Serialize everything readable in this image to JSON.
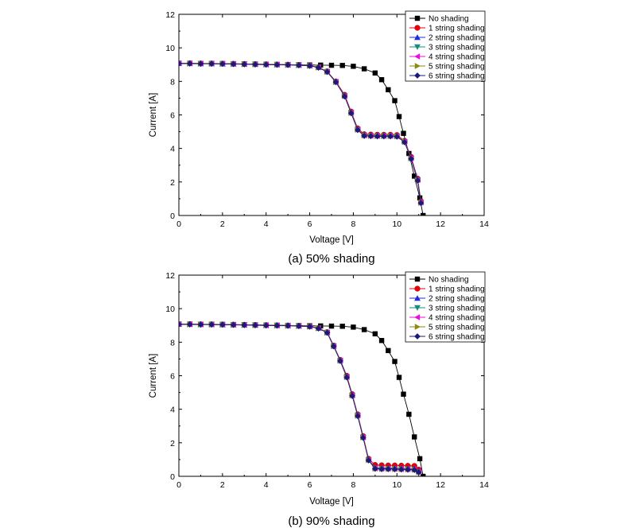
{
  "colors": {
    "no_shading": "#000000",
    "string_1": "#e8000b",
    "string_2": "#1f2adb",
    "string_3": "#168c7c",
    "string_4": "#e60fd8",
    "string_5": "#8a8a12",
    "string_6": "#1a1a7a"
  },
  "chart_data": [
    {
      "type": "line",
      "caption": "(a) 50% shading",
      "xlabel": "Voltage [V]",
      "ylabel": "Current [A]",
      "xlim": [
        0,
        14
      ],
      "ylim": [
        0,
        12
      ],
      "xticks": [
        "0",
        "2",
        "4",
        "6",
        "8",
        "10",
        "12",
        "14"
      ],
      "yticks": [
        "0",
        "2",
        "4",
        "6",
        "8",
        "10",
        "12"
      ],
      "legend_position": "top-right",
      "series": [
        {
          "name": "No shading",
          "marker": "square",
          "color_key": "no_shading",
          "x": [
            0,
            0.5,
            1,
            1.5,
            2,
            2.5,
            3,
            3.5,
            4,
            4.5,
            5,
            5.5,
            6,
            6.5,
            7,
            7.5,
            8,
            8.5,
            9,
            9.3,
            9.6,
            9.9,
            10.1,
            10.3,
            10.55,
            10.8,
            11.05,
            11.2
          ],
          "y": [
            9.08,
            9.08,
            9.07,
            9.07,
            9.06,
            9.05,
            9.04,
            9.03,
            9.02,
            9.01,
            9.0,
            8.99,
            8.98,
            8.97,
            8.96,
            8.95,
            8.9,
            8.75,
            8.5,
            8.1,
            7.5,
            6.85,
            5.9,
            4.9,
            3.7,
            2.35,
            1.05,
            0.0
          ]
        },
        {
          "name": "1 string shading",
          "marker": "circle",
          "color_key": "string_1",
          "x": [
            0,
            0.5,
            1,
            1.5,
            2,
            2.5,
            3,
            3.5,
            4,
            4.5,
            5,
            5.5,
            6,
            6.4,
            6.8,
            7.2,
            7.6,
            7.9,
            8.2,
            8.5,
            8.8,
            9.1,
            9.4,
            9.7,
            10.0,
            10.35,
            10.65,
            10.95,
            11.1
          ],
          "y": [
            9.08,
            9.08,
            9.07,
            9.07,
            9.06,
            9.05,
            9.04,
            9.03,
            9.02,
            9.01,
            9.0,
            8.98,
            8.95,
            8.85,
            8.6,
            8.0,
            7.2,
            6.2,
            5.2,
            4.85,
            4.83,
            4.82,
            4.82,
            4.82,
            4.8,
            4.45,
            3.5,
            2.2,
            0.85
          ]
        },
        {
          "name": "2 string shading",
          "marker": "triangle-up",
          "color_key": "string_2",
          "x": [
            0,
            0.5,
            1,
            1.5,
            2,
            2.5,
            3,
            3.5,
            4,
            4.5,
            5,
            5.5,
            6,
            6.4,
            6.8,
            7.2,
            7.6,
            7.9,
            8.2,
            8.5,
            8.8,
            9.1,
            9.4,
            9.7,
            10.0,
            10.35,
            10.65,
            10.95,
            11.1
          ],
          "y": [
            9.07,
            9.07,
            9.06,
            9.06,
            9.05,
            9.04,
            9.03,
            9.02,
            9.01,
            9.0,
            8.99,
            8.97,
            8.94,
            8.84,
            8.58,
            7.98,
            7.15,
            6.15,
            5.15,
            4.8,
            4.78,
            4.77,
            4.77,
            4.77,
            4.75,
            4.42,
            3.45,
            2.15,
            0.8
          ]
        },
        {
          "name": "3 string shading",
          "marker": "triangle-down",
          "color_key": "string_3",
          "x": [
            0,
            0.5,
            1,
            1.5,
            2,
            2.5,
            3,
            3.5,
            4,
            4.5,
            5,
            5.5,
            6,
            6.4,
            6.8,
            7.2,
            7.6,
            7.9,
            8.2,
            8.5,
            8.8,
            9.1,
            9.4,
            9.7,
            10.0,
            10.35,
            10.65,
            10.95,
            11.1
          ],
          "y": [
            9.07,
            9.07,
            9.06,
            9.06,
            9.05,
            9.04,
            9.03,
            9.02,
            9.01,
            9.0,
            8.99,
            8.97,
            8.94,
            8.84,
            8.58,
            7.97,
            7.13,
            6.13,
            5.13,
            4.78,
            4.76,
            4.75,
            4.75,
            4.75,
            4.73,
            4.4,
            3.42,
            2.12,
            0.78
          ]
        },
        {
          "name": "4 string shading",
          "marker": "triangle-left",
          "color_key": "string_4",
          "x": [
            0,
            0.5,
            1,
            1.5,
            2,
            2.5,
            3,
            3.5,
            4,
            4.5,
            5,
            5.5,
            6,
            6.4,
            6.8,
            7.2,
            7.6,
            7.9,
            8.2,
            8.5,
            8.8,
            9.1,
            9.4,
            9.7,
            10.0,
            10.35,
            10.65,
            10.95,
            11.1
          ],
          "y": [
            9.07,
            9.07,
            9.06,
            9.06,
            9.05,
            9.04,
            9.03,
            9.02,
            9.01,
            9.0,
            8.99,
            8.97,
            8.94,
            8.84,
            8.58,
            7.97,
            7.13,
            6.13,
            5.13,
            4.78,
            4.76,
            4.75,
            4.75,
            4.75,
            4.73,
            4.4,
            3.42,
            2.12,
            0.78
          ]
        },
        {
          "name": "5 string shading",
          "marker": "triangle-right",
          "color_key": "string_5",
          "x": [
            0,
            0.5,
            1,
            1.5,
            2,
            2.5,
            3,
            3.5,
            4,
            4.5,
            5,
            5.5,
            6,
            6.4,
            6.8,
            7.2,
            7.6,
            7.9,
            8.2,
            8.5,
            8.8,
            9.1,
            9.4,
            9.7,
            10.0,
            10.35,
            10.65,
            10.95,
            11.1
          ],
          "y": [
            9.06,
            9.06,
            9.05,
            9.05,
            9.04,
            9.03,
            9.02,
            9.01,
            9.0,
            8.99,
            8.98,
            8.96,
            8.93,
            8.83,
            8.57,
            7.96,
            7.12,
            6.12,
            5.12,
            4.77,
            4.75,
            4.74,
            4.74,
            4.74,
            4.72,
            4.39,
            3.4,
            2.1,
            0.76
          ]
        },
        {
          "name": "6 string shading",
          "marker": "diamond",
          "color_key": "string_6",
          "x": [
            0,
            0.5,
            1,
            1.5,
            2,
            2.5,
            3,
            3.5,
            4,
            4.5,
            5,
            5.5,
            6,
            6.4,
            6.8,
            7.2,
            7.6,
            7.9,
            8.2,
            8.5,
            8.8,
            9.1,
            9.4,
            9.7,
            10.0,
            10.35,
            10.65,
            10.95,
            11.1
          ],
          "y": [
            9.06,
            9.06,
            9.05,
            9.05,
            9.04,
            9.03,
            9.02,
            9.01,
            9.0,
            8.99,
            8.98,
            8.96,
            8.93,
            8.82,
            8.56,
            7.95,
            7.1,
            6.1,
            5.1,
            4.75,
            4.73,
            4.72,
            4.72,
            4.72,
            4.7,
            4.37,
            3.38,
            2.08,
            0.74
          ]
        }
      ]
    },
    {
      "type": "line",
      "caption": "(b) 90% shading",
      "xlabel": "Voltage [V]",
      "ylabel": "Current [A]",
      "xlim": [
        0,
        14
      ],
      "ylim": [
        0,
        12
      ],
      "xticks": [
        "0",
        "2",
        "4",
        "6",
        "8",
        "10",
        "12",
        "14"
      ],
      "yticks": [
        "0",
        "2",
        "4",
        "6",
        "8",
        "10",
        "12"
      ],
      "legend_position": "top-right",
      "series": [
        {
          "name": "No shading",
          "marker": "square",
          "color_key": "no_shading",
          "x": [
            0,
            0.5,
            1,
            1.5,
            2,
            2.5,
            3,
            3.5,
            4,
            4.5,
            5,
            5.5,
            6,
            6.5,
            7,
            7.5,
            8,
            8.5,
            9,
            9.3,
            9.6,
            9.9,
            10.1,
            10.3,
            10.55,
            10.8,
            11.05,
            11.2
          ],
          "y": [
            9.08,
            9.08,
            9.07,
            9.07,
            9.06,
            9.05,
            9.04,
            9.03,
            9.02,
            9.01,
            9.0,
            8.99,
            8.98,
            8.97,
            8.96,
            8.95,
            8.9,
            8.75,
            8.5,
            8.1,
            7.5,
            6.85,
            5.9,
            4.9,
            3.7,
            2.35,
            1.05,
            0.0
          ]
        },
        {
          "name": "1 string shading",
          "marker": "circle",
          "color_key": "string_1",
          "x": [
            0,
            0.5,
            1,
            1.5,
            2,
            2.5,
            3,
            3.5,
            4,
            4.5,
            5,
            5.5,
            6,
            6.4,
            6.8,
            7.1,
            7.4,
            7.7,
            7.95,
            8.2,
            8.45,
            8.7,
            9.0,
            9.3,
            9.6,
            9.9,
            10.2,
            10.5,
            10.8,
            11.0
          ],
          "y": [
            9.08,
            9.08,
            9.07,
            9.07,
            9.06,
            9.05,
            9.04,
            9.03,
            9.02,
            9.01,
            9.0,
            8.98,
            8.95,
            8.85,
            8.6,
            7.8,
            6.95,
            6.0,
            4.9,
            3.7,
            2.4,
            1.05,
            0.68,
            0.66,
            0.65,
            0.65,
            0.64,
            0.63,
            0.62,
            0.4
          ]
        },
        {
          "name": "2 string shading",
          "marker": "triangle-up",
          "color_key": "string_2",
          "x": [
            0,
            0.5,
            1,
            1.5,
            2,
            2.5,
            3,
            3.5,
            4,
            4.5,
            5,
            5.5,
            6,
            6.4,
            6.8,
            7.1,
            7.4,
            7.7,
            7.95,
            8.2,
            8.45,
            8.7,
            9.0,
            9.3,
            9.6,
            9.9,
            10.2,
            10.5,
            10.8,
            11.0
          ],
          "y": [
            9.07,
            9.07,
            9.06,
            9.06,
            9.05,
            9.04,
            9.03,
            9.02,
            9.01,
            9.0,
            8.99,
            8.97,
            8.94,
            8.84,
            8.58,
            7.78,
            6.92,
            5.95,
            4.85,
            3.65,
            2.35,
            1.0,
            0.52,
            0.5,
            0.5,
            0.49,
            0.48,
            0.47,
            0.45,
            0.3
          ]
        },
        {
          "name": "3 string shading",
          "marker": "triangle-down",
          "color_key": "string_3",
          "x": [
            0,
            0.5,
            1,
            1.5,
            2,
            2.5,
            3,
            3.5,
            4,
            4.5,
            5,
            5.5,
            6,
            6.4,
            6.8,
            7.1,
            7.4,
            7.7,
            7.95,
            8.2,
            8.45,
            8.7,
            9.0,
            9.3,
            9.6,
            9.9,
            10.2,
            10.5,
            10.8,
            11.0
          ],
          "y": [
            9.07,
            9.07,
            9.06,
            9.06,
            9.05,
            9.04,
            9.03,
            9.02,
            9.01,
            9.0,
            8.99,
            8.97,
            8.94,
            8.84,
            8.58,
            7.77,
            6.9,
            5.93,
            4.83,
            3.63,
            2.33,
            0.98,
            0.48,
            0.46,
            0.46,
            0.45,
            0.44,
            0.43,
            0.41,
            0.27
          ]
        },
        {
          "name": "4 string shading",
          "marker": "triangle-left",
          "color_key": "string_4",
          "x": [
            0,
            0.5,
            1,
            1.5,
            2,
            2.5,
            3,
            3.5,
            4,
            4.5,
            5,
            5.5,
            6,
            6.4,
            6.8,
            7.1,
            7.4,
            7.7,
            7.95,
            8.2,
            8.45,
            8.7,
            9.0,
            9.3,
            9.6,
            9.9,
            10.2,
            10.5,
            10.8,
            11.0
          ],
          "y": [
            9.07,
            9.07,
            9.06,
            9.06,
            9.05,
            9.04,
            9.03,
            9.02,
            9.01,
            9.0,
            8.99,
            8.97,
            8.94,
            8.84,
            8.58,
            7.77,
            6.9,
            5.93,
            4.83,
            3.63,
            2.33,
            0.98,
            0.47,
            0.45,
            0.45,
            0.44,
            0.43,
            0.42,
            0.4,
            0.26
          ]
        },
        {
          "name": "5 string shading",
          "marker": "triangle-right",
          "color_key": "string_5",
          "x": [
            0,
            0.5,
            1,
            1.5,
            2,
            2.5,
            3,
            3.5,
            4,
            4.5,
            5,
            5.5,
            6,
            6.4,
            6.8,
            7.1,
            7.4,
            7.7,
            7.95,
            8.2,
            8.45,
            8.7,
            9.0,
            9.3,
            9.6,
            9.9,
            10.2,
            10.5,
            10.8,
            11.0
          ],
          "y": [
            9.06,
            9.06,
            9.05,
            9.05,
            9.04,
            9.03,
            9.02,
            9.01,
            9.0,
            8.99,
            8.98,
            8.96,
            8.93,
            8.83,
            8.57,
            7.76,
            6.89,
            5.92,
            4.82,
            3.62,
            2.32,
            0.97,
            0.46,
            0.44,
            0.44,
            0.43,
            0.42,
            0.41,
            0.39,
            0.25
          ]
        },
        {
          "name": "6 string shading",
          "marker": "diamond",
          "color_key": "string_6",
          "x": [
            0,
            0.5,
            1,
            1.5,
            2,
            2.5,
            3,
            3.5,
            4,
            4.5,
            5,
            5.5,
            6,
            6.4,
            6.8,
            7.1,
            7.4,
            7.7,
            7.95,
            8.2,
            8.45,
            8.7,
            9.0,
            9.3,
            9.6,
            9.9,
            10.2,
            10.5,
            10.8,
            11.0
          ],
          "y": [
            9.06,
            9.06,
            9.05,
            9.05,
            9.04,
            9.03,
            9.02,
            9.01,
            9.0,
            8.99,
            8.98,
            8.96,
            8.93,
            8.82,
            8.56,
            7.75,
            6.88,
            5.9,
            4.8,
            3.6,
            2.3,
            0.95,
            0.45,
            0.43,
            0.43,
            0.42,
            0.41,
            0.4,
            0.38,
            0.24
          ]
        }
      ]
    }
  ]
}
